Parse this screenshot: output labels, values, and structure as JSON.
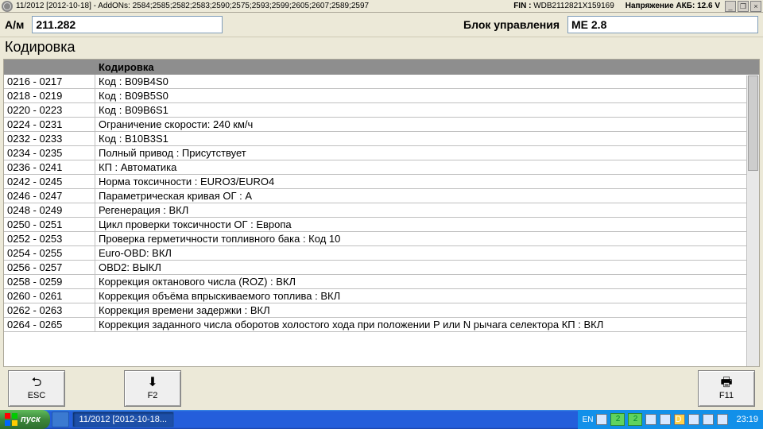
{
  "status": {
    "left": "11/2012 [2012-10-18] - AddONs: 2584;2585;2582;2583;2590;2575;2593;2599;2605;2607;2589;2597",
    "fin_label": "FIN :",
    "fin_value": "WDB2112821X159169",
    "voltage_label": "Напряжение АКБ:",
    "voltage_value": "12.6 V"
  },
  "header": {
    "am_label": "А/м",
    "am_value": "211.282",
    "block_label": "Блок управления",
    "block_value": "ME 2.8"
  },
  "section_title": "Кодировка",
  "table": {
    "col1": "",
    "col2": "Кодировка",
    "rows": [
      {
        "a": "0216 - 0217",
        "b": "Код : B09B4S0"
      },
      {
        "a": "0218 - 0219",
        "b": "Код : B09B5S0"
      },
      {
        "a": "0220 - 0223",
        "b": "Код : B09B6S1"
      },
      {
        "a": "0224 - 0231",
        "b": "Ограничение скорости: 240 км/ч"
      },
      {
        "a": "0232 - 0233",
        "b": "Код : B10B3S1"
      },
      {
        "a": "0234 - 0235",
        "b": "Полный привод : Присутствует"
      },
      {
        "a": "0236 - 0241",
        "b": "КП : Автоматика"
      },
      {
        "a": "0242 - 0245",
        "b": "Норма токсичности : EURO3/EURO4"
      },
      {
        "a": "0246 - 0247",
        "b": "Параметрическая кривая ОГ : A"
      },
      {
        "a": "0248 - 0249",
        "b": "Регенерация : ВКЛ"
      },
      {
        "a": "0250 - 0251",
        "b": "Цикл проверки токсичности ОГ : Европа"
      },
      {
        "a": "0252 - 0253",
        "b": "Проверка герметичности топливного бака : Код 10"
      },
      {
        "a": "0254 - 0255",
        "b": "Euro-OBD: ВКЛ"
      },
      {
        "a": "0256 - 0257",
        "b": "OBD2: ВЫКЛ"
      },
      {
        "a": "0258 - 0259",
        "b": "Коррекция октанового числа (ROZ) : ВКЛ"
      },
      {
        "a": "0260 - 0261",
        "b": "Коррекция объёма впрыскиваемого топлива : ВКЛ"
      },
      {
        "a": "0262 - 0263",
        "b": "Коррекция времени задержки : ВКЛ"
      },
      {
        "a": "0264 - 0265",
        "b": "Коррекция заданного числа оборотов холостого хода при положении P или N рычага селектора КП : ВКЛ"
      }
    ]
  },
  "fn": {
    "esc": "ESC",
    "f2": "F2",
    "f11": "F11"
  },
  "taskbar": {
    "start": "пуск",
    "task1": "11/2012 [2012-10-18...",
    "lang": "EN",
    "clock": "23:19"
  }
}
